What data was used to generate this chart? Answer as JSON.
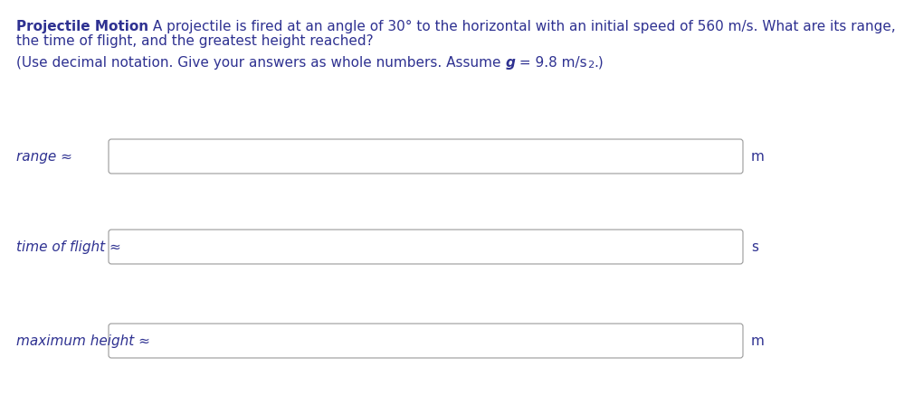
{
  "title_bold": "Projectile Motion",
  "title_normal": " A projectile is fired at an angle of 30° to the horizontal with an initial speed of 560 m/s. What are its range,",
  "title_line2": "the time of flight, and the greatest height reached?",
  "subtitle_full": "(Use decimal notation. Give your answers as whole numbers. Assume  g = 9.8 m/s².)",
  "labels": [
    "range ≈",
    "time of flight ≈",
    "maximum height ≈"
  ],
  "units": [
    "m",
    "s",
    "m"
  ],
  "text_color": "#2E3191",
  "box_edge_color": "#999999",
  "bg_color": "#FFFFFF",
  "fontsize": 11,
  "label_fontsize": 11
}
